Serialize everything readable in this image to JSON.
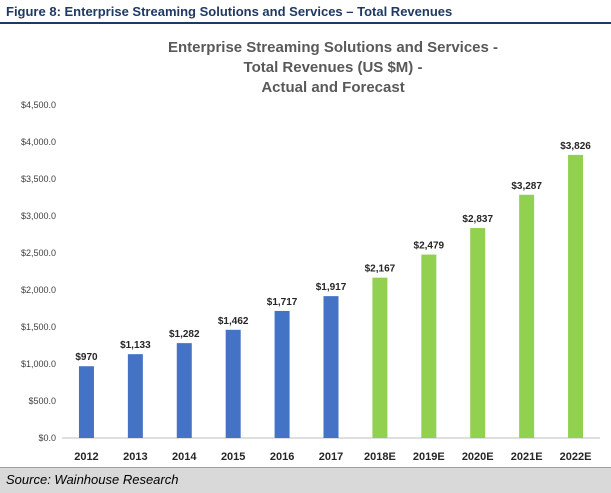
{
  "figure": {
    "caption": "Figure 8: Enterprise Streaming Solutions and Services – Total Revenues",
    "source": "Source: Wainhouse Research"
  },
  "colors": {
    "actual": "#4472c4",
    "forecast": "#92d050",
    "caption": "#1f3864",
    "source_bg": "#d9d9d9"
  },
  "chart_data": {
    "type": "bar",
    "title_lines": [
      "Enterprise Streaming Solutions and Services -",
      "Total Revenues (US $M) -",
      "Actual and Forecast"
    ],
    "xlabel": "",
    "ylabel": "",
    "categories": [
      "2012",
      "2013",
      "2014",
      "2015",
      "2016",
      "2017",
      "2018E",
      "2019E",
      "2020E",
      "2021E",
      "2022E"
    ],
    "values": [
      970,
      1133,
      1282,
      1462,
      1717,
      1917,
      2167,
      2479,
      2837,
      3287,
      3826
    ],
    "value_labels": [
      "$970",
      "$1,133",
      "$1,282",
      "$1,462",
      "$1,717",
      "$1,917",
      "$2,167",
      "$2,479",
      "$2,837",
      "$3,287",
      "$3,826"
    ],
    "groups": [
      "actual",
      "actual",
      "actual",
      "actual",
      "actual",
      "actual",
      "forecast",
      "forecast",
      "forecast",
      "forecast",
      "forecast"
    ],
    "ylim": [
      0,
      4500
    ],
    "yticks": [
      0,
      500,
      1000,
      1500,
      2000,
      2500,
      3000,
      3500,
      4000,
      4500
    ],
    "ytick_labels": [
      "$0.0",
      "$500.0",
      "$1,000.0",
      "$1,500.0",
      "$2,000.0",
      "$2,500.0",
      "$3,000.0",
      "$3,500.0",
      "$4,000.0",
      "$4,500.0"
    ],
    "grid": false,
    "legend": "none"
  }
}
